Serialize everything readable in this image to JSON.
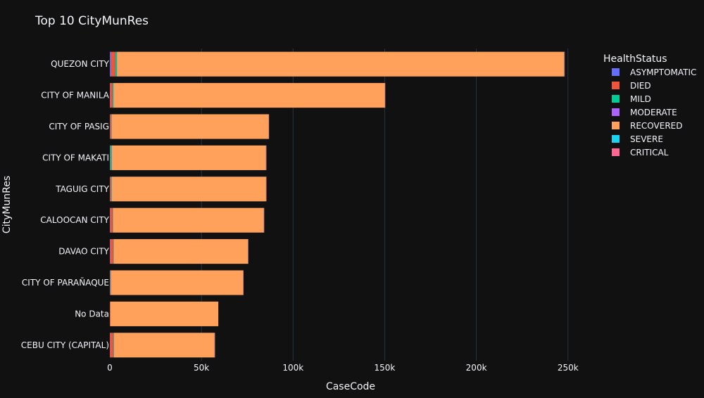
{
  "chart_data": {
    "type": "bar",
    "orientation": "horizontal",
    "barmode": "stack",
    "title": "Top 10 CityMunRes",
    "xlabel": "CaseCode",
    "ylabel": "CityMunRes",
    "xlim": [
      0,
      262000
    ],
    "xticks": [
      0,
      50000,
      100000,
      150000,
      200000,
      250000
    ],
    "xtick_labels": [
      "0",
      "50k",
      "100k",
      "150k",
      "200k",
      "250k"
    ],
    "grid": true,
    "legend_title": "HealthStatus",
    "legend_position": "top-right",
    "categories": [
      "QUEZON CITY",
      "CITY OF MANILA",
      "CITY OF PASIG",
      "CITY OF MAKATI",
      "TAGUIG CITY",
      "CALOOCAN CITY",
      "DAVAO CITY",
      "CITY OF PARAÑAQUE",
      "No Data",
      "CEBU CITY (CAPITAL)"
    ],
    "series": [
      {
        "name": "ASYMPTOMATIC",
        "color": "#636efa",
        "values": [
          600,
          150,
          100,
          150,
          100,
          150,
          200,
          100,
          0,
          100
        ]
      },
      {
        "name": "DIED",
        "color": "#ef553b",
        "values": [
          2400,
          1300,
          600,
          200,
          600,
          1300,
          1700,
          300,
          300,
          1800
        ]
      },
      {
        "name": "MILD",
        "color": "#00cc96",
        "values": [
          800,
          500,
          200,
          700,
          300,
          200,
          200,
          200,
          0,
          300
        ]
      },
      {
        "name": "MODERATE",
        "color": "#ab63fa",
        "values": [
          100,
          100,
          50,
          50,
          50,
          50,
          50,
          50,
          0,
          50
        ]
      },
      {
        "name": "RECOVERED",
        "color": "#ffa15a",
        "values": [
          244000,
          148000,
          85700,
          84100,
          84200,
          82300,
          73200,
          72100,
          58900,
          54900
        ]
      },
      {
        "name": "SEVERE",
        "color": "#19d3f3",
        "values": [
          150,
          50,
          30,
          30,
          30,
          30,
          30,
          30,
          0,
          30
        ]
      },
      {
        "name": "CRITICAL",
        "color": "#ff6692",
        "values": [
          100,
          50,
          30,
          30,
          30,
          30,
          30,
          30,
          0,
          30
        ]
      }
    ]
  },
  "colors": {
    "background": "#111111",
    "grid": "#283442",
    "text": "#f2f5fa"
  }
}
